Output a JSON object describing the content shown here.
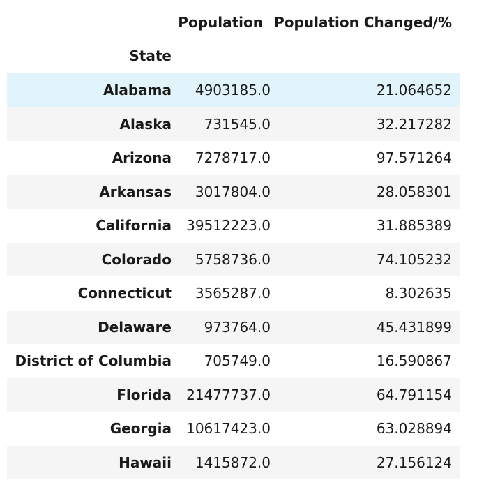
{
  "table": {
    "columns": [
      "Population",
      "Population Changed/%"
    ],
    "index_name": "State",
    "rows": [
      {
        "state": "Alabama",
        "population": "4903185.0",
        "changed": "21.064652",
        "hovered": true
      },
      {
        "state": "Alaska",
        "population": "731545.0",
        "changed": "32.217282"
      },
      {
        "state": "Arizona",
        "population": "7278717.0",
        "changed": "97.571264"
      },
      {
        "state": "Arkansas",
        "population": "3017804.0",
        "changed": "28.058301"
      },
      {
        "state": "California",
        "population": "39512223.0",
        "changed": "31.885389"
      },
      {
        "state": "Colorado",
        "population": "5758736.0",
        "changed": "74.105232"
      },
      {
        "state": "Connecticut",
        "population": "3565287.0",
        "changed": "8.302635"
      },
      {
        "state": "Delaware",
        "population": "973764.0",
        "changed": "45.431899"
      },
      {
        "state": "District of Columbia",
        "population": "705749.0",
        "changed": "16.590867"
      },
      {
        "state": "Florida",
        "population": "21477737.0",
        "changed": "64.791154"
      },
      {
        "state": "Georgia",
        "population": "10617423.0",
        "changed": "63.028894"
      },
      {
        "state": "Hawaii",
        "population": "1415872.0",
        "changed": "27.156124"
      }
    ]
  },
  "colors": {
    "hover_row": "#e1f3fb",
    "striped_row": "#f5f5f5",
    "header_rule": "#c8c8c8"
  }
}
